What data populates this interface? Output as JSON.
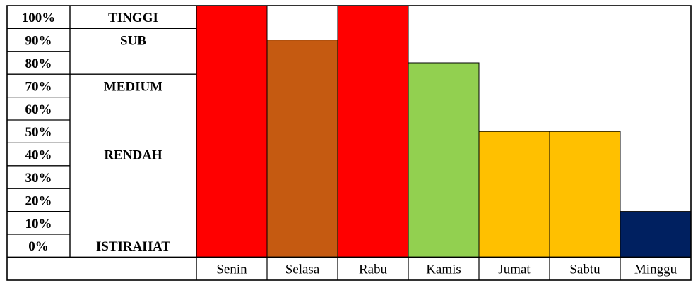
{
  "chart_data": {
    "type": "bar",
    "title": "",
    "xlabel": "",
    "ylabel": "",
    "ylim": [
      0,
      100
    ],
    "y_ticks": [
      "100%",
      "90%",
      "80%",
      "70%",
      "60%",
      "50%",
      "40%",
      "30%",
      "20%",
      "10%",
      "0%"
    ],
    "zones": [
      {
        "label": "TINGGI",
        "at": 100
      },
      {
        "label": "SUB",
        "at": 90
      },
      {
        "label": "MEDIUM",
        "at": 70
      },
      {
        "label": "RENDAH",
        "at": 40
      },
      {
        "label": "ISTIRAHAT",
        "at": 0
      }
    ],
    "categories": [
      "Senin",
      "Selasa",
      "Rabu",
      "Kamis",
      "Jumat",
      "Sabtu",
      "Minggu"
    ],
    "values": [
      100,
      85,
      100,
      75,
      45,
      45,
      10
    ],
    "colors": [
      "#ff0000",
      "#c55a11",
      "#ff0000",
      "#92d050",
      "#ffc000",
      "#ffc000",
      "#002060"
    ],
    "grid": false,
    "legend": "none"
  }
}
